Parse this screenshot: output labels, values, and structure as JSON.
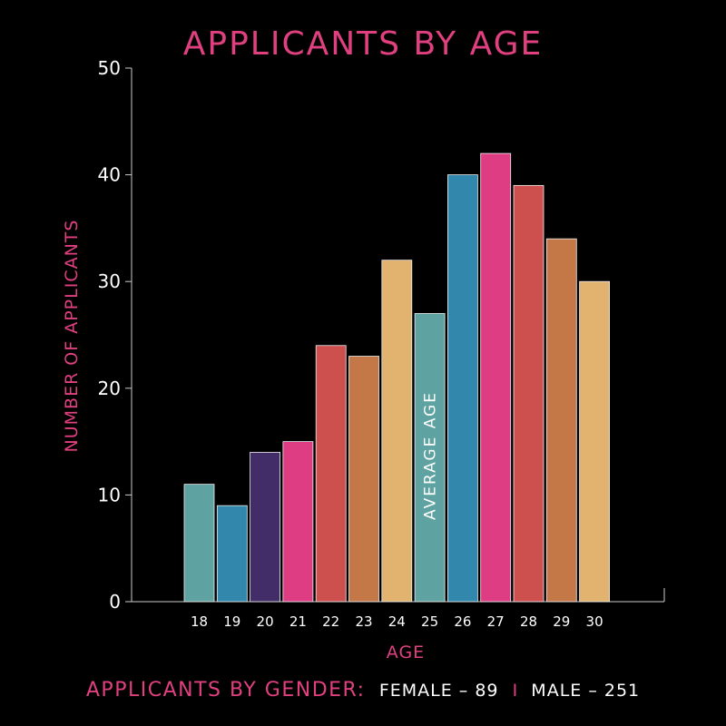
{
  "colors": {
    "background": "#000000",
    "accent": "#e0407f",
    "axis": "#cccccc",
    "text": "#ffffff",
    "bar_palette": [
      "#5ea3a2",
      "#3187ac",
      "#432d68",
      "#de3d84",
      "#cd4f4e",
      "#c47848",
      "#e2b36f",
      "#5ea3a2",
      "#3187ac",
      "#de3d84",
      "#cd4f4e",
      "#c47848",
      "#e2b36f"
    ]
  },
  "chart_data": {
    "type": "bar",
    "title": "APPLICANTS BY AGE",
    "xlabel": "AGE",
    "ylabel": "NUMBER OF APPLICANTS",
    "categories": [
      "18",
      "19",
      "20",
      "21",
      "22",
      "23",
      "24",
      "25",
      "26",
      "27",
      "28",
      "29",
      "30"
    ],
    "values": [
      11,
      9,
      14,
      15,
      24,
      23,
      32,
      27,
      40,
      42,
      39,
      34,
      30
    ],
    "ylim": [
      0,
      50
    ],
    "yticks": [
      0,
      10,
      20,
      30,
      40,
      50
    ],
    "grid": false,
    "annotations": [
      {
        "text": "AVERAGE  AGE",
        "category": "25"
      }
    ]
  },
  "footer": {
    "label": "APPLICANTS BY GENDER:",
    "female": "FEMALE – 89",
    "separator": "I",
    "male": "MALE – 251"
  }
}
